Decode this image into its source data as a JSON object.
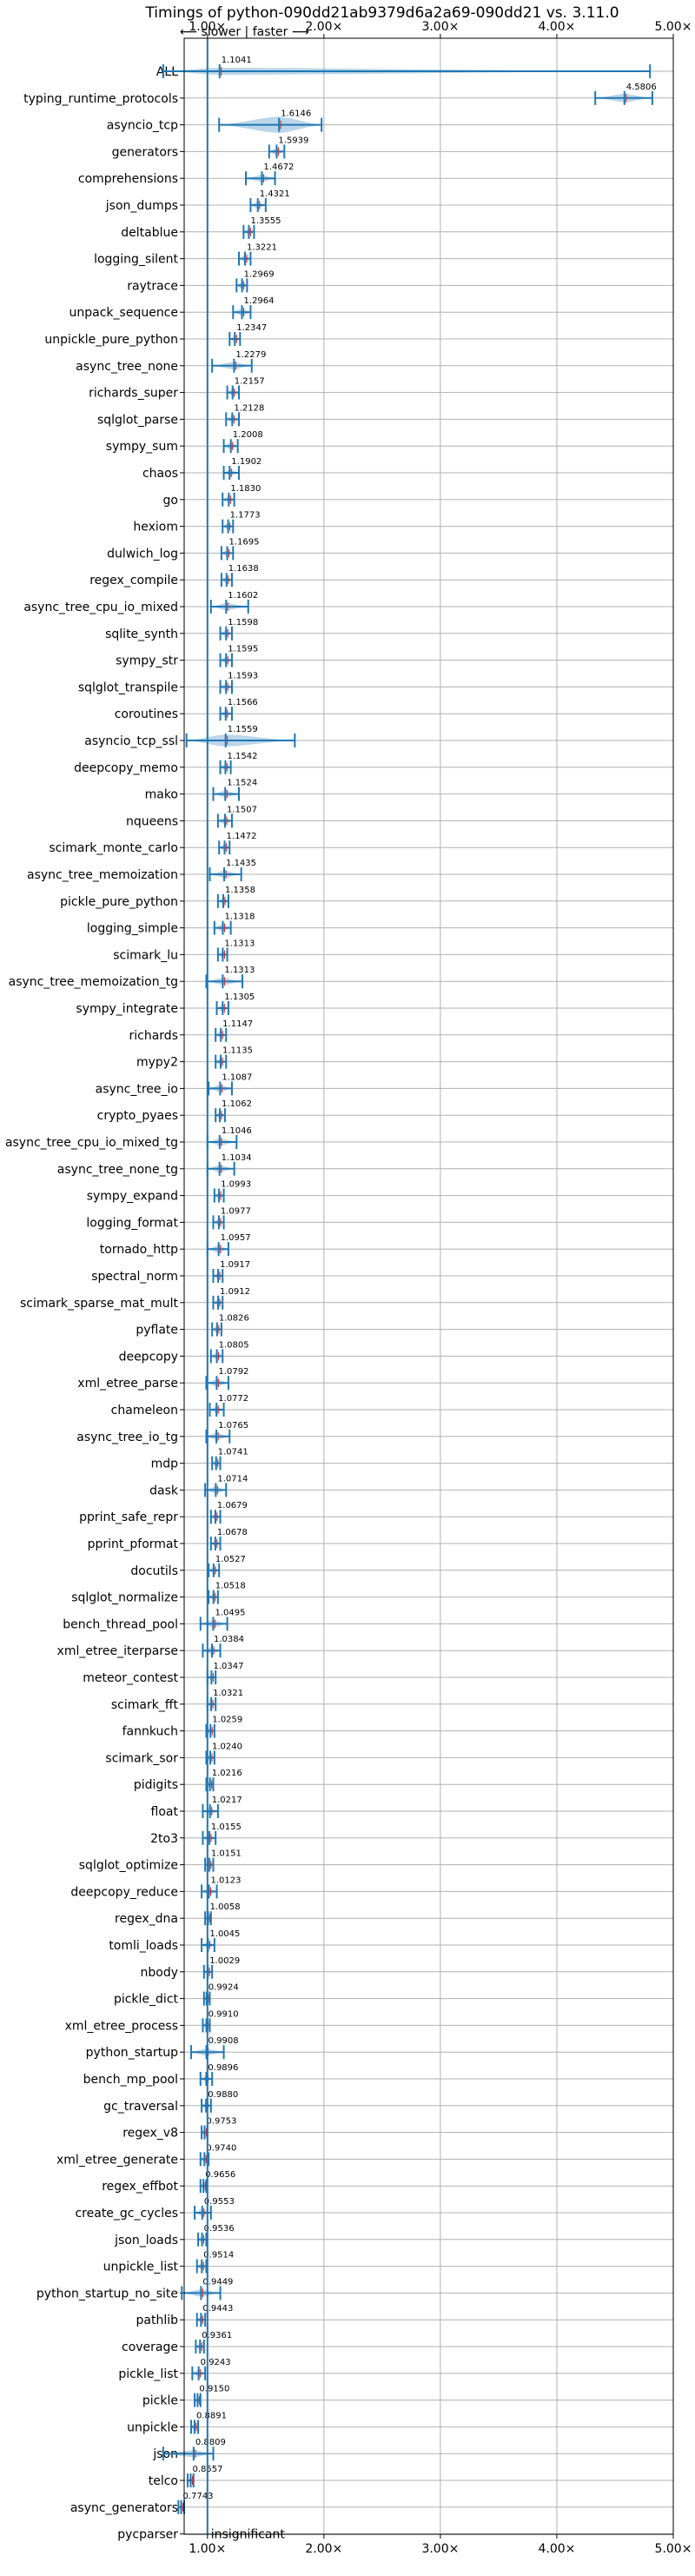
{
  "chart_data": {
    "type": "violin",
    "title": "Timings of python-090dd21ab9379d6a2a69-090dd21 vs. 3.11.0",
    "direction_label": "⟵ slower | faster ⟶",
    "x_ticks": [
      {
        "value": 1.0,
        "label": "1.00×"
      },
      {
        "value": 2.0,
        "label": "2.00×"
      },
      {
        "value": 3.0,
        "label": "3.00×"
      },
      {
        "value": 4.0,
        "label": "4.00×"
      },
      {
        "value": 5.0,
        "label": "5.00×"
      }
    ],
    "xlim": [
      0.8,
      5.0
    ],
    "reference_line": 1.0,
    "grid": true,
    "colors": {
      "violin": "#1f77b4",
      "mean_marker": "#d62728",
      "ref_line": "#1f77b4",
      "grid": "#b0b0b0"
    },
    "benchmarks": [
      {
        "name": "ALL",
        "label": "1.1041",
        "value": 1.1041,
        "lo": 0.62,
        "hi": 4.8,
        "w": 0.1,
        "sig": true
      },
      {
        "name": "typing_runtime_protocols",
        "label": "4.5806",
        "value": 4.5806,
        "lo": 4.33,
        "hi": 4.82,
        "w": 0.15,
        "sig": true
      },
      {
        "name": "asyncio_tcp",
        "label": "1.6146",
        "value": 1.6146,
        "lo": 1.1,
        "hi": 1.98,
        "w": 0.3,
        "sig": true
      },
      {
        "name": "generators",
        "label": "1.5939",
        "value": 1.5939,
        "lo": 1.53,
        "hi": 1.66,
        "w": 0.06,
        "sig": true
      },
      {
        "name": "comprehensions",
        "label": "1.4672",
        "value": 1.4672,
        "lo": 1.33,
        "hi": 1.58,
        "w": 0.07,
        "sig": true
      },
      {
        "name": "json_dumps",
        "label": "1.4321",
        "value": 1.4321,
        "lo": 1.37,
        "hi": 1.5,
        "w": 0.06,
        "sig": true
      },
      {
        "name": "deltablue",
        "label": "1.3555",
        "value": 1.3555,
        "lo": 1.31,
        "hi": 1.4,
        "w": 0.05,
        "sig": true
      },
      {
        "name": "logging_silent",
        "label": "1.3221",
        "value": 1.3221,
        "lo": 1.27,
        "hi": 1.37,
        "w": 0.05,
        "sig": true
      },
      {
        "name": "raytrace",
        "label": "1.2969",
        "value": 1.2969,
        "lo": 1.25,
        "hi": 1.34,
        "w": 0.05,
        "sig": true
      },
      {
        "name": "unpack_sequence",
        "label": "1.2964",
        "value": 1.2964,
        "lo": 1.22,
        "hi": 1.37,
        "w": 0.05,
        "sig": true
      },
      {
        "name": "unpickle_pure_python",
        "label": "1.2347",
        "value": 1.2347,
        "lo": 1.19,
        "hi": 1.28,
        "w": 0.05,
        "sig": true
      },
      {
        "name": "async_tree_none",
        "label": "1.2279",
        "value": 1.2279,
        "lo": 1.04,
        "hi": 1.38,
        "w": 0.1,
        "sig": true
      },
      {
        "name": "richards_super",
        "label": "1.2157",
        "value": 1.2157,
        "lo": 1.17,
        "hi": 1.27,
        "w": 0.05,
        "sig": true
      },
      {
        "name": "sqlglot_parse",
        "label": "1.2128",
        "value": 1.2128,
        "lo": 1.16,
        "hi": 1.27,
        "w": 0.05,
        "sig": true
      },
      {
        "name": "sympy_sum",
        "label": "1.2008",
        "value": 1.2008,
        "lo": 1.14,
        "hi": 1.26,
        "w": 0.05,
        "sig": true
      },
      {
        "name": "chaos",
        "label": "1.1902",
        "value": 1.1902,
        "lo": 1.14,
        "hi": 1.27,
        "w": 0.05,
        "sig": true
      },
      {
        "name": "go",
        "label": "1.1830",
        "value": 1.183,
        "lo": 1.13,
        "hi": 1.23,
        "w": 0.05,
        "sig": true
      },
      {
        "name": "hexiom",
        "label": "1.1773",
        "value": 1.1773,
        "lo": 1.13,
        "hi": 1.22,
        "w": 0.05,
        "sig": true
      },
      {
        "name": "dulwich_log",
        "label": "1.1695",
        "value": 1.1695,
        "lo": 1.12,
        "hi": 1.22,
        "w": 0.05,
        "sig": true
      },
      {
        "name": "regex_compile",
        "label": "1.1638",
        "value": 1.1638,
        "lo": 1.12,
        "hi": 1.21,
        "w": 0.05,
        "sig": true
      },
      {
        "name": "async_tree_cpu_io_mixed",
        "label": "1.1602",
        "value": 1.1602,
        "lo": 1.03,
        "hi": 1.35,
        "w": 0.08,
        "sig": true
      },
      {
        "name": "sqlite_synth",
        "label": "1.1598",
        "value": 1.1598,
        "lo": 1.11,
        "hi": 1.21,
        "w": 0.05,
        "sig": true
      },
      {
        "name": "sympy_str",
        "label": "1.1595",
        "value": 1.1595,
        "lo": 1.11,
        "hi": 1.21,
        "w": 0.05,
        "sig": true
      },
      {
        "name": "sqlglot_transpile",
        "label": "1.1593",
        "value": 1.1593,
        "lo": 1.11,
        "hi": 1.21,
        "w": 0.05,
        "sig": true
      },
      {
        "name": "coroutines",
        "label": "1.1566",
        "value": 1.1566,
        "lo": 1.11,
        "hi": 1.21,
        "w": 0.05,
        "sig": true
      },
      {
        "name": "asyncio_tcp_ssl",
        "label": "1.1559",
        "value": 1.1559,
        "lo": 0.82,
        "hi": 1.75,
        "w": 0.22,
        "sig": true
      },
      {
        "name": "deepcopy_memo",
        "label": "1.1542",
        "value": 1.1542,
        "lo": 1.11,
        "hi": 1.2,
        "w": 0.05,
        "sig": true
      },
      {
        "name": "mako",
        "label": "1.1524",
        "value": 1.1524,
        "lo": 1.05,
        "hi": 1.27,
        "w": 0.06,
        "sig": true
      },
      {
        "name": "nqueens",
        "label": "1.1507",
        "value": 1.1507,
        "lo": 1.09,
        "hi": 1.21,
        "w": 0.05,
        "sig": true
      },
      {
        "name": "scimark_monte_carlo",
        "label": "1.1472",
        "value": 1.1472,
        "lo": 1.1,
        "hi": 1.19,
        "w": 0.05,
        "sig": true
      },
      {
        "name": "async_tree_memoization",
        "label": "1.1435",
        "value": 1.1435,
        "lo": 1.02,
        "hi": 1.29,
        "w": 0.1,
        "sig": true
      },
      {
        "name": "pickle_pure_python",
        "label": "1.1358",
        "value": 1.1358,
        "lo": 1.09,
        "hi": 1.18,
        "w": 0.05,
        "sig": true
      },
      {
        "name": "logging_simple",
        "label": "1.1318",
        "value": 1.1318,
        "lo": 1.06,
        "hi": 1.2,
        "w": 0.05,
        "sig": true
      },
      {
        "name": "scimark_lu",
        "label": "1.1313",
        "value": 1.1313,
        "lo": 1.09,
        "hi": 1.17,
        "w": 0.05,
        "sig": true
      },
      {
        "name": "async_tree_memoization_tg",
        "label": "1.1313",
        "value": 1.1313,
        "lo": 0.99,
        "hi": 1.3,
        "w": 0.1,
        "sig": true
      },
      {
        "name": "sympy_integrate",
        "label": "1.1305",
        "value": 1.1305,
        "lo": 1.08,
        "hi": 1.18,
        "w": 0.05,
        "sig": true
      },
      {
        "name": "richards",
        "label": "1.1147",
        "value": 1.1147,
        "lo": 1.07,
        "hi": 1.16,
        "w": 0.05,
        "sig": true
      },
      {
        "name": "mypy2",
        "label": "1.1135",
        "value": 1.1135,
        "lo": 1.07,
        "hi": 1.16,
        "w": 0.05,
        "sig": true
      },
      {
        "name": "async_tree_io",
        "label": "1.1087",
        "value": 1.1087,
        "lo": 1.01,
        "hi": 1.21,
        "w": 0.08,
        "sig": true
      },
      {
        "name": "crypto_pyaes",
        "label": "1.1062",
        "value": 1.1062,
        "lo": 1.07,
        "hi": 1.15,
        "w": 0.05,
        "sig": true
      },
      {
        "name": "async_tree_cpu_io_mixed_tg",
        "label": "1.1046",
        "value": 1.1046,
        "lo": 1.0,
        "hi": 1.25,
        "w": 0.07,
        "sig": true
      },
      {
        "name": "async_tree_none_tg",
        "label": "1.1034",
        "value": 1.1034,
        "lo": 1.0,
        "hi": 1.23,
        "w": 0.07,
        "sig": true
      },
      {
        "name": "sympy_expand",
        "label": "1.0993",
        "value": 1.0993,
        "lo": 1.06,
        "hi": 1.14,
        "w": 0.05,
        "sig": true
      },
      {
        "name": "logging_format",
        "label": "1.0977",
        "value": 1.0977,
        "lo": 1.05,
        "hi": 1.14,
        "w": 0.05,
        "sig": true
      },
      {
        "name": "tornado_http",
        "label": "1.0957",
        "value": 1.0957,
        "lo": 1.0,
        "hi": 1.18,
        "w": 0.05,
        "sig": true
      },
      {
        "name": "spectral_norm",
        "label": "1.0917",
        "value": 1.0917,
        "lo": 1.05,
        "hi": 1.13,
        "w": 0.05,
        "sig": true
      },
      {
        "name": "scimark_sparse_mat_mult",
        "label": "1.0912",
        "value": 1.0912,
        "lo": 1.05,
        "hi": 1.13,
        "w": 0.05,
        "sig": true
      },
      {
        "name": "pyflate",
        "label": "1.0826",
        "value": 1.0826,
        "lo": 1.04,
        "hi": 1.12,
        "w": 0.05,
        "sig": true
      },
      {
        "name": "deepcopy",
        "label": "1.0805",
        "value": 1.0805,
        "lo": 1.03,
        "hi": 1.13,
        "w": 0.05,
        "sig": true
      },
      {
        "name": "xml_etree_parse",
        "label": "1.0792",
        "value": 1.0792,
        "lo": 0.99,
        "hi": 1.18,
        "w": 0.06,
        "sig": true
      },
      {
        "name": "chameleon",
        "label": "1.0772",
        "value": 1.0772,
        "lo": 1.02,
        "hi": 1.14,
        "w": 0.05,
        "sig": true
      },
      {
        "name": "async_tree_io_tg",
        "label": "1.0765",
        "value": 1.0765,
        "lo": 0.99,
        "hi": 1.19,
        "w": 0.07,
        "sig": true
      },
      {
        "name": "mdp",
        "label": "1.0741",
        "value": 1.0741,
        "lo": 1.04,
        "hi": 1.11,
        "w": 0.04,
        "sig": true
      },
      {
        "name": "dask",
        "label": "1.0714",
        "value": 1.0714,
        "lo": 0.98,
        "hi": 1.16,
        "w": 0.05,
        "sig": true
      },
      {
        "name": "pprint_safe_repr",
        "label": "1.0679",
        "value": 1.0679,
        "lo": 1.03,
        "hi": 1.11,
        "w": 0.04,
        "sig": true
      },
      {
        "name": "pprint_pformat",
        "label": "1.0678",
        "value": 1.0678,
        "lo": 1.03,
        "hi": 1.11,
        "w": 0.04,
        "sig": true
      },
      {
        "name": "docutils",
        "label": "1.0527",
        "value": 1.0527,
        "lo": 1.01,
        "hi": 1.1,
        "w": 0.04,
        "sig": true
      },
      {
        "name": "sqlglot_normalize",
        "label": "1.0518",
        "value": 1.0518,
        "lo": 1.01,
        "hi": 1.09,
        "w": 0.04,
        "sig": true
      },
      {
        "name": "bench_thread_pool",
        "label": "1.0495",
        "value": 1.0495,
        "lo": 0.94,
        "hi": 1.17,
        "w": 0.06,
        "sig": true
      },
      {
        "name": "xml_etree_iterparse",
        "label": "1.0384",
        "value": 1.0384,
        "lo": 0.96,
        "hi": 1.11,
        "w": 0.05,
        "sig": true
      },
      {
        "name": "meteor_contest",
        "label": "1.0347",
        "value": 1.0347,
        "lo": 1.0,
        "hi": 1.07,
        "w": 0.04,
        "sig": true
      },
      {
        "name": "scimark_fft",
        "label": "1.0321",
        "value": 1.0321,
        "lo": 1.0,
        "hi": 1.07,
        "w": 0.04,
        "sig": true
      },
      {
        "name": "fannkuch",
        "label": "1.0259",
        "value": 1.0259,
        "lo": 0.99,
        "hi": 1.06,
        "w": 0.04,
        "sig": true
      },
      {
        "name": "scimark_sor",
        "label": "1.0240",
        "value": 1.024,
        "lo": 0.99,
        "hi": 1.06,
        "w": 0.04,
        "sig": true
      },
      {
        "name": "pidigits",
        "label": "1.0216",
        "value": 1.0216,
        "lo": 0.99,
        "hi": 1.05,
        "w": 0.03,
        "sig": true
      },
      {
        "name": "float",
        "label": "1.0217",
        "value": 1.0217,
        "lo": 0.96,
        "hi": 1.09,
        "w": 0.05,
        "sig": true
      },
      {
        "name": "2to3",
        "label": "1.0155",
        "value": 1.0155,
        "lo": 0.96,
        "hi": 1.07,
        "w": 0.05,
        "sig": true
      },
      {
        "name": "sqlglot_optimize",
        "label": "1.0151",
        "value": 1.0151,
        "lo": 0.98,
        "hi": 1.05,
        "w": 0.04,
        "sig": true
      },
      {
        "name": "deepcopy_reduce",
        "label": "1.0123",
        "value": 1.0123,
        "lo": 0.95,
        "hi": 1.08,
        "w": 0.05,
        "sig": true
      },
      {
        "name": "regex_dna",
        "label": "1.0058",
        "value": 1.0058,
        "lo": 0.98,
        "hi": 1.03,
        "w": 0.03,
        "sig": true
      },
      {
        "name": "tomli_loads",
        "label": "1.0045",
        "value": 1.0045,
        "lo": 0.95,
        "hi": 1.06,
        "w": 0.05,
        "sig": true
      },
      {
        "name": "nbody",
        "label": "1.0029",
        "value": 1.0029,
        "lo": 0.97,
        "hi": 1.04,
        "w": 0.03,
        "sig": true
      },
      {
        "name": "pickle_dict",
        "label": "0.9924",
        "value": 0.9924,
        "lo": 0.97,
        "hi": 1.02,
        "w": 0.03,
        "sig": true
      },
      {
        "name": "xml_etree_process",
        "label": "0.9910",
        "value": 0.991,
        "lo": 0.96,
        "hi": 1.02,
        "w": 0.03,
        "sig": true
      },
      {
        "name": "python_startup",
        "label": "0.9908",
        "value": 0.9908,
        "lo": 0.86,
        "hi": 1.14,
        "w": 0.08,
        "sig": true
      },
      {
        "name": "bench_mp_pool",
        "label": "0.9896",
        "value": 0.9896,
        "lo": 0.94,
        "hi": 1.04,
        "w": 0.05,
        "sig": true
      },
      {
        "name": "gc_traversal",
        "label": "0.9880",
        "value": 0.988,
        "lo": 0.95,
        "hi": 1.03,
        "w": 0.04,
        "sig": true
      },
      {
        "name": "regex_v8",
        "label": "0.9753",
        "value": 0.9753,
        "lo": 0.95,
        "hi": 1.0,
        "w": 0.03,
        "sig": true
      },
      {
        "name": "xml_etree_generate",
        "label": "0.9740",
        "value": 0.974,
        "lo": 0.94,
        "hi": 1.01,
        "w": 0.04,
        "sig": true
      },
      {
        "name": "regex_effbot",
        "label": "0.9656",
        "value": 0.9656,
        "lo": 0.94,
        "hi": 0.99,
        "w": 0.03,
        "sig": true
      },
      {
        "name": "create_gc_cycles",
        "label": "0.9553",
        "value": 0.9553,
        "lo": 0.89,
        "hi": 1.03,
        "w": 0.07,
        "sig": true
      },
      {
        "name": "json_loads",
        "label": "0.9536",
        "value": 0.9536,
        "lo": 0.92,
        "hi": 0.99,
        "w": 0.04,
        "sig": true
      },
      {
        "name": "unpickle_list",
        "label": "0.9514",
        "value": 0.9514,
        "lo": 0.91,
        "hi": 0.99,
        "w": 0.04,
        "sig": true
      },
      {
        "name": "python_startup_no_site",
        "label": "0.9449",
        "value": 0.9449,
        "lo": 0.78,
        "hi": 1.11,
        "w": 0.09,
        "sig": true
      },
      {
        "name": "pathlib",
        "label": "0.9443",
        "value": 0.9443,
        "lo": 0.91,
        "hi": 0.98,
        "w": 0.04,
        "sig": true
      },
      {
        "name": "coverage",
        "label": "0.9361",
        "value": 0.9361,
        "lo": 0.9,
        "hi": 0.97,
        "w": 0.04,
        "sig": true
      },
      {
        "name": "pickle_list",
        "label": "0.9243",
        "value": 0.9243,
        "lo": 0.87,
        "hi": 0.98,
        "w": 0.05,
        "sig": true
      },
      {
        "name": "pickle",
        "label": "0.9150",
        "value": 0.915,
        "lo": 0.89,
        "hi": 0.94,
        "w": 0.03,
        "sig": true
      },
      {
        "name": "unpickle",
        "label": "0.8891",
        "value": 0.8891,
        "lo": 0.86,
        "hi": 0.92,
        "w": 0.04,
        "sig": true
      },
      {
        "name": "json",
        "label": "0.8809",
        "value": 0.8809,
        "lo": 0.62,
        "hi": 1.05,
        "w": 0.08,
        "sig": true
      },
      {
        "name": "telco",
        "label": "0.8557",
        "value": 0.8557,
        "lo": 0.83,
        "hi": 0.88,
        "w": 0.04,
        "sig": true
      },
      {
        "name": "async_generators",
        "label": "0.7743",
        "value": 0.7743,
        "lo": 0.75,
        "hi": 0.8,
        "w": 0.04,
        "sig": true
      },
      {
        "name": "pycparser",
        "label": "insignificant",
        "value": 1.0,
        "lo": 1.0,
        "hi": 1.0,
        "w": 0.0,
        "sig": false
      }
    ]
  }
}
